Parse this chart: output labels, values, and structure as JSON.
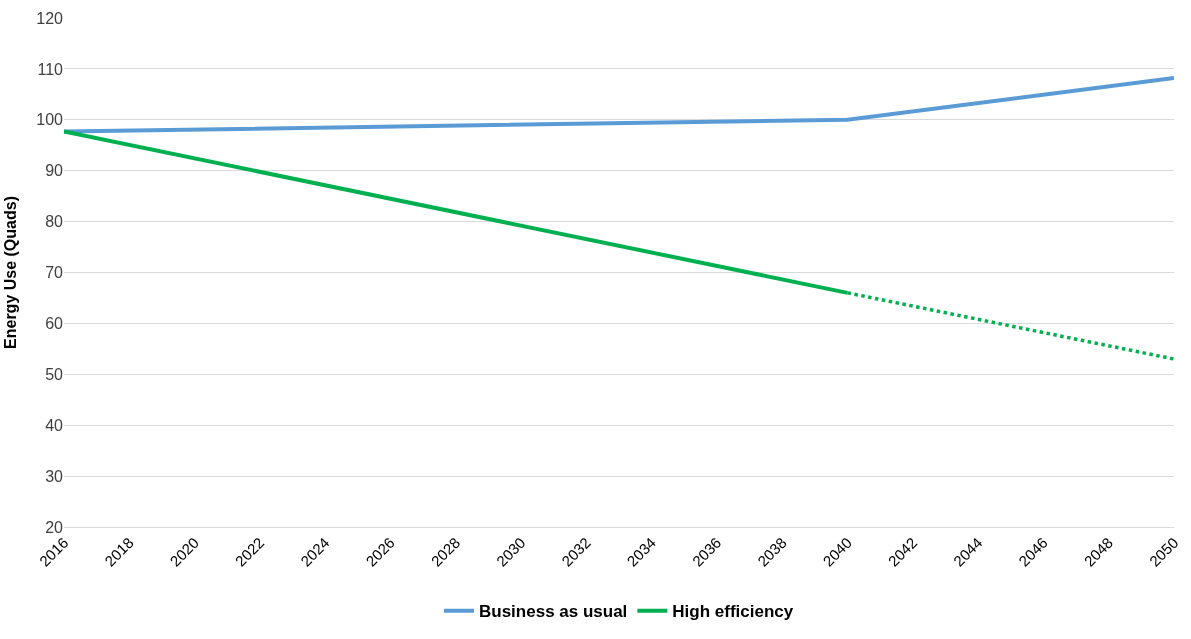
{
  "chart_data": {
    "type": "line",
    "ylabel": "Energy Use (Quads)",
    "xlim": [
      2016,
      2050
    ],
    "xticks": [
      2016,
      2018,
      2020,
      2022,
      2024,
      2026,
      2028,
      2030,
      2032,
      2034,
      2036,
      2038,
      2040,
      2042,
      2044,
      2046,
      2048,
      2050
    ],
    "ylim": [
      20,
      120
    ],
    "yticks": [
      20,
      30,
      40,
      50,
      60,
      70,
      80,
      90,
      100,
      110,
      120
    ],
    "grid": "y",
    "legend": "bottom",
    "marker": "none",
    "series": [
      {
        "name": "Business as usual",
        "color": "#5b9bd5",
        "x": [
          2016,
          2040,
          2050
        ],
        "values": [
          97.7,
          100,
          108.2
        ],
        "line_style": "solid"
      },
      {
        "name": "High efficiency",
        "color": "#00b050",
        "x": [
          2016,
          2040
        ],
        "values": [
          97.7,
          66
        ],
        "line_style": "solid"
      },
      {
        "color": "#00b050",
        "x": [
          2040,
          2050
        ],
        "values": [
          66,
          53
        ],
        "line_style": "dotted"
      }
    ]
  }
}
